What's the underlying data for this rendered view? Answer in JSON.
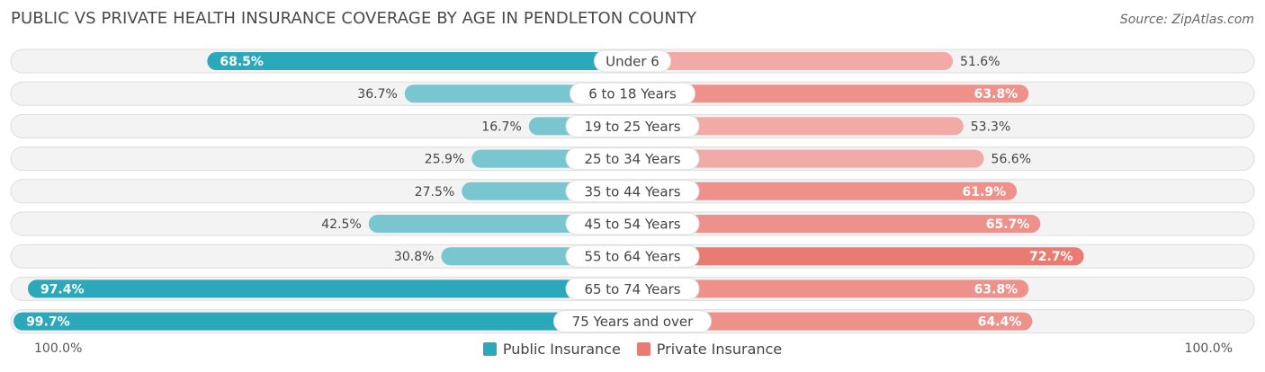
{
  "header": {
    "title": "PUBLIC VS PRIVATE HEALTH INSURANCE COVERAGE BY AGE IN PENDLETON COUNTY",
    "source": "Source: ZipAtlas.com"
  },
  "axis": {
    "left_label": "100.0%",
    "right_label": "100.0%"
  },
  "legend": {
    "public_label": "Public Insurance",
    "private_label": "Private Insurance"
  },
  "colors": {
    "public_strong": "#2ba8ba",
    "public_light": "#79c6d1",
    "private_strong": "#ea7b73",
    "private_light": "#f1aaa6",
    "track": "#efefef"
  },
  "chart_data": {
    "type": "bar",
    "orientation": "diverging-horizontal",
    "title": "PUBLIC VS PRIVATE HEALTH INSURANCE COVERAGE BY AGE IN PENDLETON COUNTY",
    "categories": [
      "Under 6",
      "6 to 18 Years",
      "19 to 25 Years",
      "25 to 34 Years",
      "35 to 44 Years",
      "45 to 54 Years",
      "55 to 64 Years",
      "65 to 74 Years",
      "75 Years and over"
    ],
    "series": [
      {
        "name": "Public Insurance",
        "values": [
          68.5,
          36.7,
          16.7,
          25.9,
          27.5,
          42.5,
          30.8,
          97.4,
          99.7
        ],
        "labels": [
          "68.5%",
          "36.7%",
          "16.7%",
          "25.9%",
          "27.5%",
          "42.5%",
          "30.8%",
          "97.4%",
          "99.7%"
        ]
      },
      {
        "name": "Private Insurance",
        "values": [
          51.6,
          63.8,
          53.3,
          56.6,
          61.9,
          65.7,
          72.7,
          63.8,
          64.4
        ],
        "labels": [
          "51.6%",
          "63.8%",
          "53.3%",
          "56.6%",
          "61.9%",
          "65.7%",
          "72.7%",
          "63.8%",
          "64.4%"
        ]
      }
    ],
    "xlim": [
      0,
      100
    ],
    "legend_position": "bottom-center"
  }
}
